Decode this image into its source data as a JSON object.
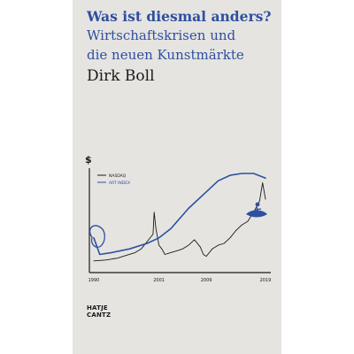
{
  "book": {
    "title": "Was ist diesmal anders?",
    "subtitle_line1": "Wirtschaftskrisen und",
    "subtitle_line2": "die neuen Kunstmärkte",
    "author": "Dirk Boll",
    "publisher_line1": "HATJE",
    "publisher_line2": "CANTZ"
  },
  "colors": {
    "cover_background": "#e5e4e1",
    "title_blue": "#2f4fa0",
    "ink": "#1a1a1a"
  },
  "chart_data": {
    "type": "line",
    "y_axis_symbol": "$",
    "x_tick_labels": [
      "1990",
      "2001",
      "2009",
      "2019"
    ],
    "legend": [
      {
        "label": "NASDAQ",
        "color": "#1a1a1a"
      },
      {
        "label": "ART INDEX",
        "color": "#2f4fa0"
      }
    ],
    "series": [
      {
        "name": "NASDAQ",
        "color": "#1a1a1a",
        "x": [
          1990,
          1992,
          1994,
          1995,
          1997,
          1998,
          1999,
          2000,
          2000.2,
          2000.5,
          2001,
          2001.5,
          2002,
          2003,
          2004,
          2005,
          2006,
          2007,
          2008,
          2008.5,
          2009,
          2010,
          2011,
          2012,
          2013,
          2014,
          2015,
          2016,
          2017,
          2018,
          2018.5,
          2019
        ],
        "values": [
          5,
          6,
          8,
          10,
          14,
          18,
          26,
          34,
          58,
          40,
          22,
          18,
          12,
          14,
          16,
          18,
          22,
          28,
          20,
          12,
          10,
          18,
          22,
          24,
          30,
          38,
          44,
          48,
          58,
          70,
          90,
          72
        ]
      },
      {
        "name": "ART INDEX",
        "color": "#2f4fa0",
        "x": [
          1990,
          1991,
          1993,
          1996,
          1999,
          2001,
          2003,
          2006,
          2009,
          2011,
          2013,
          2015,
          2017,
          2019
        ],
        "values": [
          30,
          12,
          14,
          18,
          24,
          30,
          40,
          62,
          80,
          92,
          98,
          100,
          100,
          95
        ]
      }
    ]
  }
}
